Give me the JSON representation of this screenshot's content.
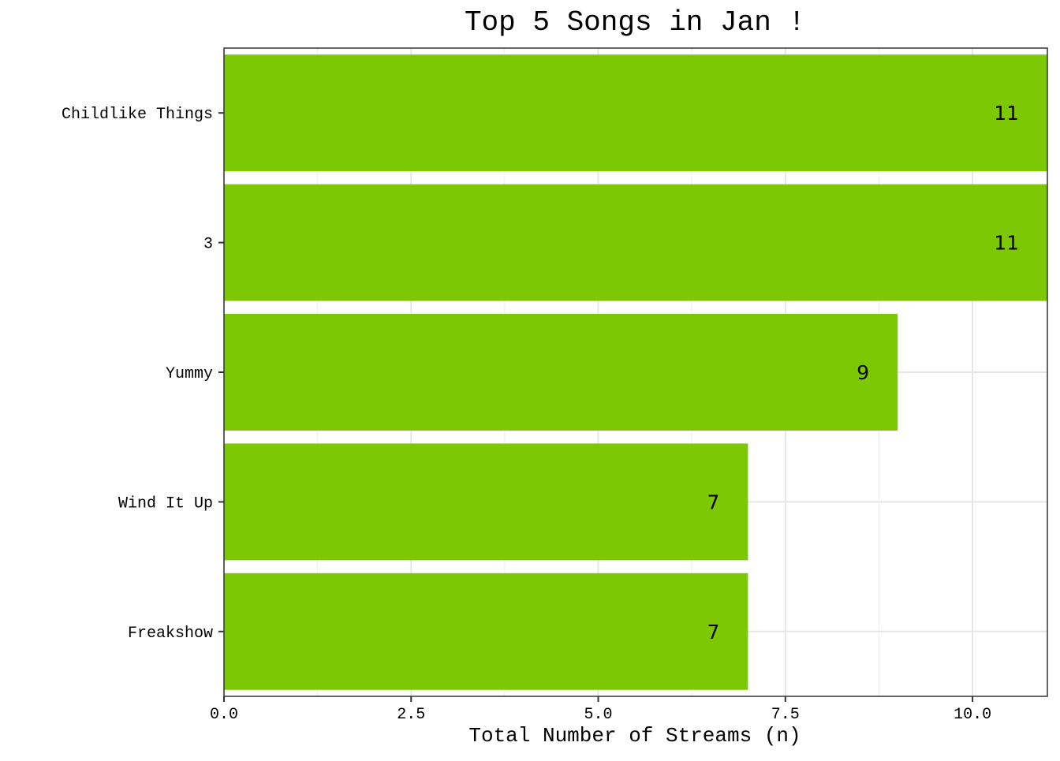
{
  "chart_data": {
    "type": "bar",
    "orientation": "horizontal",
    "title": "Top 5 Songs in Jan !",
    "xlabel": "Total Number of Streams (n)",
    "ylabel": "",
    "categories": [
      "Childlike Things",
      "3",
      "Yummy",
      "Wind It Up",
      "Freakshow"
    ],
    "values": [
      11,
      11,
      9,
      7,
      7
    ],
    "value_labels": [
      "11",
      "11",
      "9",
      "7",
      "7"
    ],
    "xlim": [
      0,
      11
    ],
    "x_ticks": [
      0.0,
      2.5,
      5.0,
      7.5,
      10.0
    ],
    "x_tick_labels": [
      "0.0",
      "2.5",
      "5.0",
      "7.5",
      "10.0"
    ],
    "bar_color": "#7CC805",
    "grid": true,
    "legend": "none"
  }
}
